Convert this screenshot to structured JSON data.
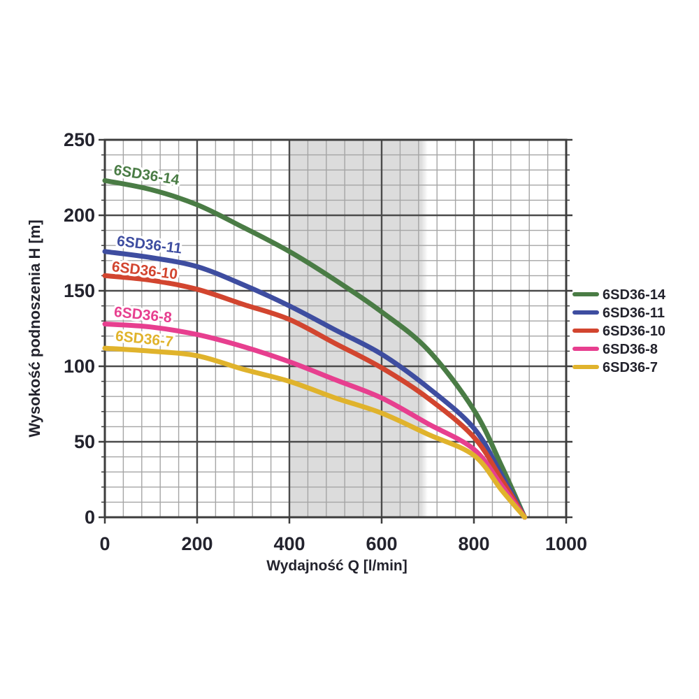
{
  "chart_data": {
    "type": "line",
    "title": "",
    "xlabel": "Wydajność Q [l/min]",
    "ylabel": "Wysokość podnoszenia H [m]",
    "xlim": [
      0,
      1000
    ],
    "ylim": [
      0,
      250
    ],
    "x_major_ticks": [
      "0",
      "200",
      "400",
      "600",
      "800",
      "1000"
    ],
    "x_major_values": [
      0,
      200,
      400,
      600,
      800,
      1000
    ],
    "y_major_ticks": [
      "0",
      "50",
      "100",
      "150",
      "200",
      "250"
    ],
    "y_major_values": [
      0,
      50,
      100,
      150,
      200,
      250
    ],
    "x_minor_step": 40,
    "y_minor_step": 10,
    "grid": "major+minor",
    "legend_position": "right-outside",
    "highlight_band": {
      "x_from": 400,
      "x_to": 700,
      "color": "#dcdcdc"
    },
    "series": [
      {
        "name": "6SD36-14",
        "color": "#4a7c45",
        "label_pos": {
          "x": 18,
          "y": 227,
          "angle": 9
        },
        "points": [
          [
            0,
            223
          ],
          [
            100,
            217
          ],
          [
            200,
            207
          ],
          [
            300,
            192
          ],
          [
            400,
            176
          ],
          [
            500,
            157
          ],
          [
            600,
            136
          ],
          [
            700,
            111
          ],
          [
            800,
            71
          ],
          [
            860,
            34
          ],
          [
            910,
            0
          ]
        ]
      },
      {
        "name": "6SD36-11",
        "color": "#3e4da0",
        "label_pos": {
          "x": 25,
          "y": 180,
          "angle": 7
        },
        "points": [
          [
            0,
            176
          ],
          [
            100,
            172
          ],
          [
            200,
            166
          ],
          [
            300,
            154
          ],
          [
            400,
            140
          ],
          [
            500,
            124
          ],
          [
            600,
            108
          ],
          [
            700,
            86
          ],
          [
            800,
            59
          ],
          [
            860,
            28
          ],
          [
            910,
            0
          ]
        ]
      },
      {
        "name": "6SD36-10",
        "color": "#d2452f",
        "label_pos": {
          "x": 14,
          "y": 163,
          "angle": 7
        },
        "points": [
          [
            0,
            160
          ],
          [
            100,
            157
          ],
          [
            200,
            151
          ],
          [
            300,
            141
          ],
          [
            400,
            131
          ],
          [
            500,
            115
          ],
          [
            600,
            99
          ],
          [
            700,
            79
          ],
          [
            800,
            53
          ],
          [
            860,
            25
          ],
          [
            910,
            0
          ]
        ]
      },
      {
        "name": "6SD36-8",
        "color": "#e73f8f",
        "label_pos": {
          "x": 19,
          "y": 133,
          "angle": 6
        },
        "points": [
          [
            0,
            128
          ],
          [
            100,
            126
          ],
          [
            200,
            121
          ],
          [
            300,
            113
          ],
          [
            400,
            103
          ],
          [
            500,
            91
          ],
          [
            600,
            79
          ],
          [
            700,
            62
          ],
          [
            800,
            45
          ],
          [
            860,
            21
          ],
          [
            910,
            0
          ]
        ]
      },
      {
        "name": "6SD36-7",
        "color": "#e0b32c",
        "label_pos": {
          "x": 22,
          "y": 117,
          "angle": 6
        },
        "points": [
          [
            0,
            112
          ],
          [
            100,
            110
          ],
          [
            200,
            107
          ],
          [
            300,
            98
          ],
          [
            400,
            90
          ],
          [
            500,
            79
          ],
          [
            600,
            69
          ],
          [
            700,
            55
          ],
          [
            800,
            41
          ],
          [
            860,
            18
          ],
          [
            910,
            0
          ]
        ]
      }
    ]
  },
  "style_colors": {
    "text": "#23232d",
    "frame": "#3d3d3d",
    "grid_major": "#4b4b4b",
    "grid_minor": "#a5a5a5"
  }
}
